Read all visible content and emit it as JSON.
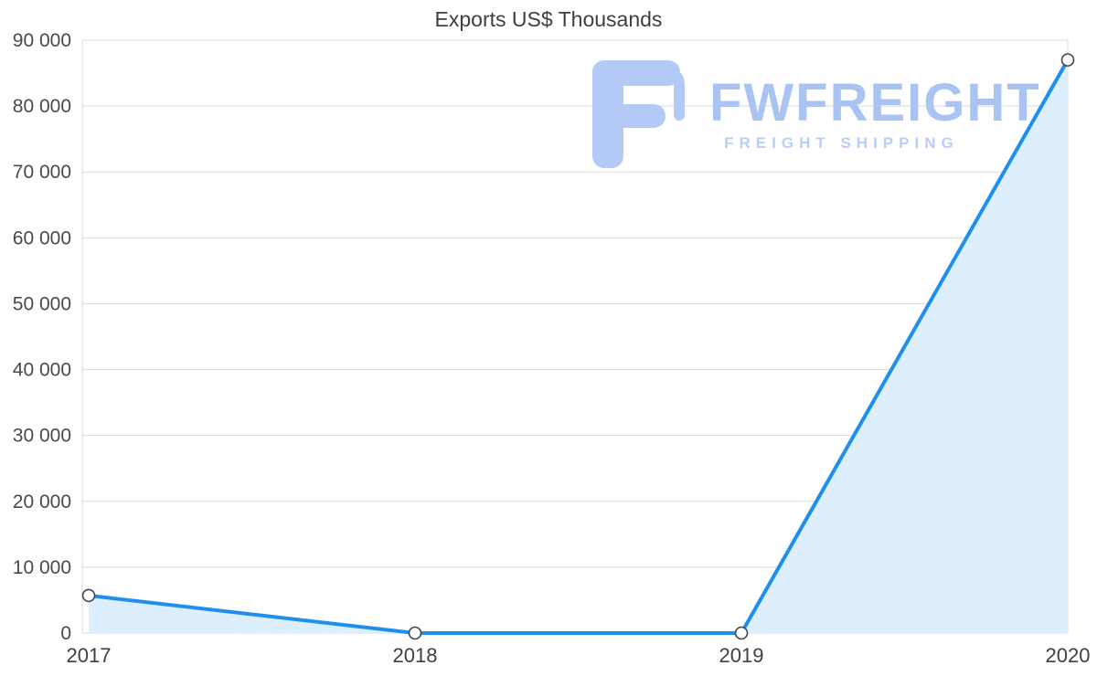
{
  "title": "Exports US$ Thousands",
  "watermark": {
    "brand": "FWFREIGHT",
    "tagline": "FREIGHT SHIPPING",
    "color": "#b3c9f6"
  },
  "chart_data": {
    "type": "area",
    "categories": [
      "2017",
      "2018",
      "2019",
      "2020"
    ],
    "values": [
      5700,
      0,
      0,
      87000
    ],
    "title": "Exports US$ Thousands",
    "xlabel": "",
    "ylabel": "",
    "ylim": [
      0,
      90000
    ],
    "y_tick_step": 10000,
    "y_tick_labels": [
      "0",
      "10 000",
      "20 000",
      "30 000",
      "40 000",
      "50 000",
      "60 000",
      "70 000",
      "80 000",
      "90 000"
    ],
    "grid": true,
    "legend": "none",
    "colors": {
      "line": "#1e8fef",
      "area": "#ddeefc",
      "marker_fill": "#ffffff",
      "marker_stroke": "#444444",
      "grid": "#d9d9d9",
      "axis_text": "#4a4a4a"
    }
  }
}
